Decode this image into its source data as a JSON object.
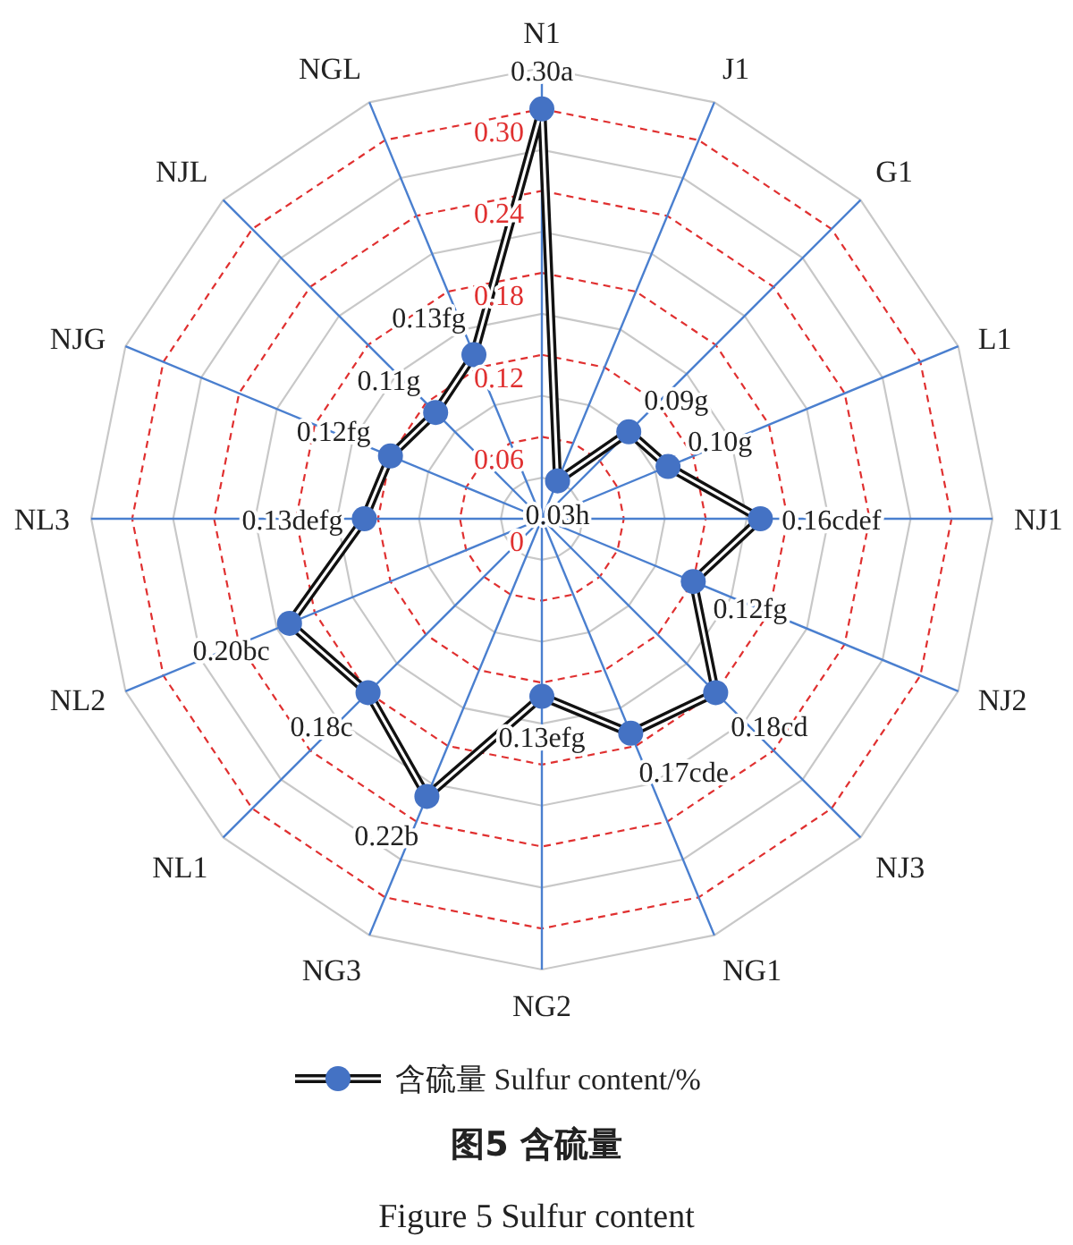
{
  "chart_data": {
    "type": "radar",
    "title": "图5  含硫量",
    "subtitle": "Figure 5  Sulfur content",
    "categories": [
      "N1",
      "J1",
      "G1",
      "L1",
      "NJ1",
      "NJ2",
      "NJ3",
      "NG1",
      "NG2",
      "NG3",
      "NL1",
      "NL2",
      "NL3",
      "NJG",
      "NJL",
      "NGL"
    ],
    "series": [
      {
        "name": "含硫量  Sulfur content/%",
        "color": "#111111",
        "values": [
          0.3,
          0.03,
          0.09,
          0.1,
          0.16,
          0.12,
          0.18,
          0.17,
          0.13,
          0.22,
          0.18,
          0.2,
          0.13,
          0.12,
          0.11,
          0.13
        ],
        "value_labels": [
          "0.30a",
          "0.03h",
          "0.09g",
          "0.10g",
          "0.16cdef",
          "0.12fg",
          "0.18cd",
          "0.17cde",
          "0.13efg",
          "0.22b",
          "0.18c",
          "0.20bc",
          "0.13defg",
          "0.12fg",
          "0.11g",
          "0.13fg"
        ]
      }
    ],
    "ylim": [
      0,
      0.33
    ],
    "yticks": [
      0,
      0.06,
      0.12,
      0.18,
      0.24,
      {
        "value": 0.3,
        "label": "0.30"
      }
    ],
    "grid": true,
    "legend": "bottom",
    "marker": "circle"
  }
}
